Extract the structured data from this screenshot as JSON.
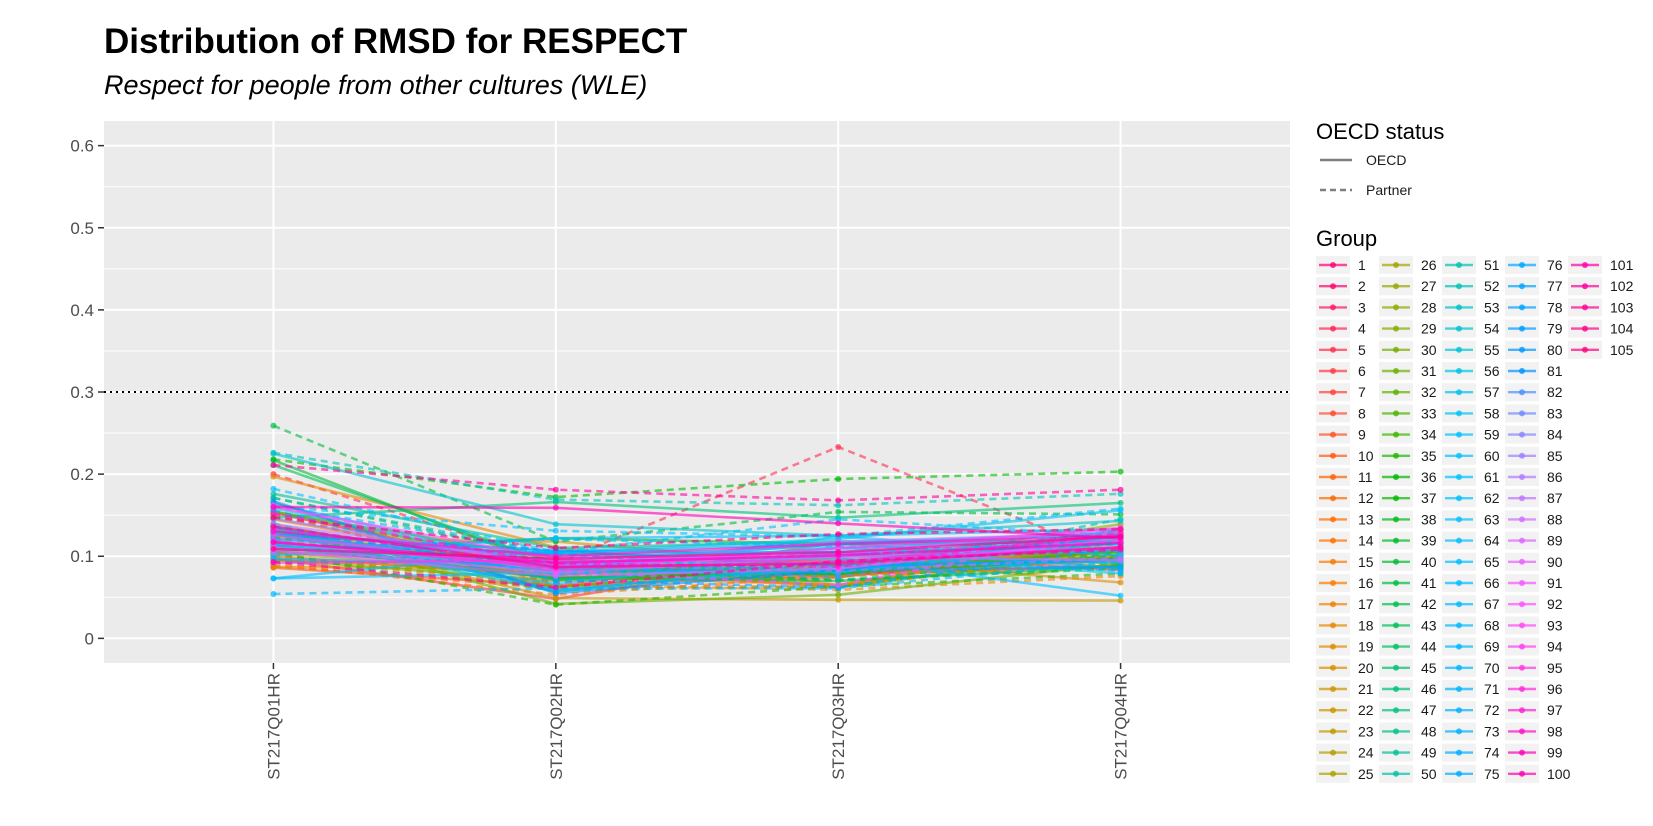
{
  "chart_data": {
    "type": "line",
    "title": "Distribution of RMSD for RESPECT",
    "subtitle": "Respect for people from other cultures (WLE)",
    "x": [
      "ST217Q01HR",
      "ST217Q02HR",
      "ST217Q03HR",
      "ST217Q04HR"
    ],
    "ylim": [
      -0.03,
      0.63
    ],
    "yticks": [
      0,
      0.1,
      0.2,
      0.3,
      0.4,
      0.5,
      0.6
    ],
    "ytick_labels": [
      "0",
      "0.1",
      "0.2",
      "0.3",
      "0.4",
      "0.5",
      "0.6"
    ],
    "reference_line": 0.3,
    "grid": true,
    "legend_position": "right",
    "oecd_legend": {
      "title": "OECD status",
      "entries": [
        {
          "label": "OECD",
          "dash": "solid"
        },
        {
          "label": "Partner",
          "dash": "dashed"
        }
      ]
    },
    "group_legend": {
      "title": "Group",
      "count": 105,
      "labels": [
        "1",
        "2",
        "3",
        "4",
        "5",
        "6",
        "7",
        "8",
        "9",
        "10",
        "11",
        "12",
        "13",
        "14",
        "15",
        "16",
        "17",
        "18",
        "19",
        "20",
        "21",
        "22",
        "23",
        "24",
        "25",
        "26",
        "27",
        "28",
        "29",
        "30",
        "31",
        "32",
        "33",
        "34",
        "35",
        "36",
        "37",
        "38",
        "39",
        "40",
        "41",
        "42",
        "43",
        "44",
        "45",
        "46",
        "47",
        "48",
        "49",
        "50",
        "51",
        "52",
        "53",
        "54",
        "55",
        "56",
        "57",
        "58",
        "59",
        "60",
        "61",
        "62",
        "63",
        "64",
        "65",
        "66",
        "67",
        "68",
        "69",
        "70",
        "71",
        "72",
        "73",
        "74",
        "75",
        "76",
        "77",
        "78",
        "79",
        "80",
        "81",
        "82",
        "83",
        "84",
        "85",
        "86",
        "87",
        "88",
        "89",
        "90",
        "91",
        "92",
        "93",
        "94",
        "95",
        "96",
        "97",
        "98",
        "99",
        "100",
        "101",
        "102",
        "103",
        "104",
        "105"
      ]
    },
    "series": [
      {
        "name": "1",
        "values": [
          0.105,
          0.088,
          0.083,
          0.109
        ],
        "oecd": true
      },
      {
        "name": "2",
        "values": [
          0.153,
          0.08,
          0.078,
          0.088
        ],
        "oecd": true
      },
      {
        "name": "3",
        "values": [
          0.151,
          0.067,
          0.089,
          0.103
        ],
        "oecd": false
      },
      {
        "name": "4",
        "values": [
          0.115,
          0.096,
          0.075,
          0.107
        ],
        "oecd": true
      },
      {
        "name": "5",
        "values": [
          0.2,
          0.092,
          0.233,
          0.097
        ],
        "oecd": false
      },
      {
        "name": "6",
        "values": [
          0.097,
          0.048,
          0.104,
          0.083
        ],
        "oecd": true
      },
      {
        "name": "7",
        "values": [
          0.132,
          0.062,
          0.117,
          0.085
        ],
        "oecd": true
      },
      {
        "name": "8",
        "values": [
          0.134,
          0.072,
          0.074,
          0.132
        ],
        "oecd": true
      },
      {
        "name": "9",
        "values": [
          0.088,
          0.061,
          0.102,
          0.117
        ],
        "oecd": false
      },
      {
        "name": "10",
        "values": [
          0.086,
          0.064,
          0.078,
          0.107
        ],
        "oecd": true
      },
      {
        "name": "11",
        "values": [
          0.102,
          0.063,
          0.063,
          0.101
        ],
        "oecd": false
      },
      {
        "name": "12",
        "values": [
          0.096,
          0.081,
          0.08,
          0.097
        ],
        "oecd": true
      },
      {
        "name": "13",
        "values": [
          0.1,
          0.076,
          0.065,
          0.12
        ],
        "oecd": true
      },
      {
        "name": "14",
        "values": [
          0.091,
          0.053,
          0.076,
          0.09
        ],
        "oecd": false
      },
      {
        "name": "15",
        "values": [
          0.165,
          0.063,
          0.081,
          0.095
        ],
        "oecd": true
      },
      {
        "name": "16",
        "values": [
          0.145,
          0.085,
          0.063,
          0.122
        ],
        "oecd": true
      },
      {
        "name": "17",
        "values": [
          0.13,
          0.065,
          0.059,
          0.076
        ],
        "oecd": false
      },
      {
        "name": "18",
        "values": [
          0.197,
          0.111,
          0.065,
          0.102
        ],
        "oecd": true
      },
      {
        "name": "19",
        "values": [
          0.087,
          0.085,
          0.097,
          0.068
        ],
        "oecd": true
      },
      {
        "name": "20",
        "values": [
          0.148,
          0.094,
          0.075,
          0.1
        ],
        "oecd": false
      },
      {
        "name": "21",
        "values": [
          0.122,
          0.118,
          0.089,
          0.106
        ],
        "oecd": true
      },
      {
        "name": "22",
        "values": [
          0.131,
          0.049,
          0.047,
          0.046
        ],
        "oecd": true
      },
      {
        "name": "23",
        "values": [
          0.12,
          0.085,
          0.065,
          0.117
        ],
        "oecd": false
      },
      {
        "name": "24",
        "values": [
          0.139,
          0.071,
          0.101,
          0.097
        ],
        "oecd": true
      },
      {
        "name": "25",
        "values": [
          0.104,
          0.103,
          0.094,
          0.125
        ],
        "oecd": true
      },
      {
        "name": "26",
        "values": [
          0.1,
          0.059,
          0.063,
          0.104
        ],
        "oecd": false
      },
      {
        "name": "27",
        "values": [
          0.154,
          0.097,
          0.075,
          0.129
        ],
        "oecd": true
      },
      {
        "name": "28",
        "values": [
          0.104,
          0.078,
          0.088,
          0.139
        ],
        "oecd": true
      },
      {
        "name": "29",
        "values": [
          0.094,
          0.078,
          0.07,
          0.09
        ],
        "oecd": false
      },
      {
        "name": "30",
        "values": [
          0.096,
          0.07,
          0.087,
          0.101
        ],
        "oecd": true
      },
      {
        "name": "31",
        "values": [
          0.135,
          0.042,
          0.053,
          0.091
        ],
        "oecd": true
      },
      {
        "name": "32",
        "values": [
          0.132,
          0.062,
          0.093,
          0.115
        ],
        "oecd": false
      },
      {
        "name": "33",
        "values": [
          0.155,
          0.086,
          0.08,
          0.106
        ],
        "oecd": true
      },
      {
        "name": "34",
        "values": [
          0.117,
          0.073,
          0.083,
          0.106
        ],
        "oecd": true
      },
      {
        "name": "35",
        "values": [
          0.105,
          0.041,
          0.063,
          0.079
        ],
        "oecd": false
      },
      {
        "name": "36",
        "values": [
          0.113,
          0.074,
          0.079,
          0.098
        ],
        "oecd": true
      },
      {
        "name": "37",
        "values": [
          0.218,
          0.172,
          0.194,
          0.203
        ],
        "oecd": false
      },
      {
        "name": "38",
        "values": [
          0.123,
          0.085,
          0.071,
          0.085
        ],
        "oecd": false
      },
      {
        "name": "39",
        "values": [
          0.106,
          0.122,
          0.115,
          0.118
        ],
        "oecd": true
      },
      {
        "name": "40",
        "values": [
          0.217,
          0.085,
          0.078,
          0.13
        ],
        "oecd": true
      },
      {
        "name": "41",
        "values": [
          0.259,
          0.118,
          0.154,
          0.151
        ],
        "oecd": false
      },
      {
        "name": "42",
        "values": [
          0.112,
          0.074,
          0.07,
          0.088
        ],
        "oecd": true
      },
      {
        "name": "43",
        "values": [
          0.211,
          0.091,
          0.082,
          0.128
        ],
        "oecd": true
      },
      {
        "name": "44",
        "values": [
          0.171,
          0.099,
          0.062,
          0.105
        ],
        "oecd": false
      },
      {
        "name": "45",
        "values": [
          0.126,
          0.087,
          0.104,
          0.091
        ],
        "oecd": true
      },
      {
        "name": "46",
        "values": [
          0.147,
          0.166,
          0.147,
          0.165
        ],
        "oecd": true
      },
      {
        "name": "47",
        "values": [
          0.114,
          0.088,
          0.071,
          0.101
        ],
        "oecd": false
      },
      {
        "name": "48",
        "values": [
          0.131,
          0.071,
          0.094,
          0.107
        ],
        "oecd": true
      },
      {
        "name": "49",
        "values": [
          0.176,
          0.11,
          0.118,
          0.118
        ],
        "oecd": true
      },
      {
        "name": "50",
        "values": [
          0.171,
          0.103,
          0.079,
          0.145
        ],
        "oecd": false
      },
      {
        "name": "51",
        "values": [
          0.128,
          0.057,
          0.093,
          0.116
        ],
        "oecd": true
      },
      {
        "name": "52",
        "values": [
          0.226,
          0.169,
          0.162,
          0.176
        ],
        "oecd": false
      },
      {
        "name": "53",
        "values": [
          0.128,
          0.078,
          0.101,
          0.093
        ],
        "oecd": false
      },
      {
        "name": "54",
        "values": [
          0.225,
          0.139,
          0.125,
          0.143
        ],
        "oecd": true
      },
      {
        "name": "55",
        "values": [
          0.133,
          0.094,
          0.114,
          0.119
        ],
        "oecd": true
      },
      {
        "name": "56",
        "values": [
          0.14,
          0.058,
          0.087,
          0.132
        ],
        "oecd": false
      },
      {
        "name": "57",
        "values": [
          0.128,
          0.105,
          0.121,
          0.156
        ],
        "oecd": true
      },
      {
        "name": "58",
        "values": [
          0.128,
          0.079,
          0.081,
          0.117
        ],
        "oecd": true
      },
      {
        "name": "59",
        "values": [
          0.109,
          0.121,
          0.112,
          0.106
        ],
        "oecd": false
      },
      {
        "name": "60",
        "values": [
          0.073,
          0.08,
          0.124,
          0.101
        ],
        "oecd": true
      },
      {
        "name": "61",
        "values": [
          0.159,
          0.085,
          0.111,
          0.085
        ],
        "oecd": true
      },
      {
        "name": "62",
        "values": [
          0.182,
          0.105,
          0.145,
          0.125
        ],
        "oecd": false
      },
      {
        "name": "63",
        "values": [
          0.113,
          0.087,
          0.098,
          0.052
        ],
        "oecd": true
      },
      {
        "name": "64",
        "values": [
          0.119,
          0.066,
          0.105,
          0.079
        ],
        "oecd": true
      },
      {
        "name": "65",
        "values": [
          0.161,
          0.131,
          0.124,
          0.158
        ],
        "oecd": false
      },
      {
        "name": "66",
        "values": [
          0.101,
          0.122,
          0.125,
          0.133
        ],
        "oecd": true
      },
      {
        "name": "67",
        "values": [
          0.073,
          0.107,
          0.104,
          0.114
        ],
        "oecd": true
      },
      {
        "name": "68",
        "values": [
          0.161,
          0.104,
          0.08,
          0.124
        ],
        "oecd": false
      },
      {
        "name": "69",
        "values": [
          0.054,
          0.061,
          0.061,
          0.094
        ],
        "oecd": false
      },
      {
        "name": "70",
        "values": [
          0.097,
          0.088,
          0.116,
          0.128
        ],
        "oecd": true
      },
      {
        "name": "71",
        "values": [
          0.137,
          0.077,
          0.103,
          0.082
        ],
        "oecd": false
      },
      {
        "name": "72",
        "values": [
          0.136,
          0.059,
          0.087,
          0.094
        ],
        "oecd": true
      },
      {
        "name": "73",
        "values": [
          0.164,
          0.087,
          0.11,
          0.121
        ],
        "oecd": true
      },
      {
        "name": "74",
        "values": [
          0.093,
          0.092,
          0.103,
          0.11
        ],
        "oecd": false
      },
      {
        "name": "75",
        "values": [
          0.121,
          0.102,
          0.105,
          0.117
        ],
        "oecd": true
      },
      {
        "name": "76",
        "values": [
          0.114,
          0.104,
          0.116,
          0.126
        ],
        "oecd": true
      },
      {
        "name": "77",
        "values": [
          0.156,
          0.071,
          0.062,
          0.111
        ],
        "oecd": false
      },
      {
        "name": "78",
        "values": [
          0.11,
          0.083,
          0.083,
          0.087
        ],
        "oecd": true
      },
      {
        "name": "79",
        "values": [
          0.126,
          0.107,
          0.088,
          0.096
        ],
        "oecd": true
      },
      {
        "name": "80",
        "values": [
          0.132,
          0.085,
          0.089,
          0.132
        ],
        "oecd": false
      },
      {
        "name": "81",
        "values": [
          0.167,
          0.055,
          0.083,
          0.125
        ],
        "oecd": true
      },
      {
        "name": "82",
        "values": [
          0.136,
          0.088,
          0.075,
          0.123
        ],
        "oecd": false
      },
      {
        "name": "83",
        "values": [
          0.12,
          0.1,
          0.098,
          0.108
        ],
        "oecd": true
      },
      {
        "name": "84",
        "values": [
          0.146,
          0.088,
          0.109,
          0.122
        ],
        "oecd": true
      },
      {
        "name": "85",
        "values": [
          0.104,
          0.09,
          0.082,
          0.098
        ],
        "oecd": false
      },
      {
        "name": "86",
        "values": [
          0.116,
          0.087,
          0.118,
          0.128
        ],
        "oecd": true
      },
      {
        "name": "87",
        "values": [
          0.139,
          0.092,
          0.1,
          0.11
        ],
        "oecd": true
      },
      {
        "name": "88",
        "values": [
          0.11,
          0.095,
          0.086,
          0.118
        ],
        "oecd": false
      },
      {
        "name": "89",
        "values": [
          0.111,
          0.08,
          0.1,
          0.095
        ],
        "oecd": true
      },
      {
        "name": "90",
        "values": [
          0.107,
          0.076,
          0.085,
          0.121
        ],
        "oecd": true
      },
      {
        "name": "91",
        "values": [
          0.162,
          0.082,
          0.065,
          0.131
        ],
        "oecd": false
      },
      {
        "name": "92",
        "values": [
          0.16,
          0.097,
          0.102,
          0.135
        ],
        "oecd": true
      },
      {
        "name": "93",
        "values": [
          0.126,
          0.083,
          0.11,
          0.133
        ],
        "oecd": true
      },
      {
        "name": "94",
        "values": [
          0.133,
          0.09,
          0.103,
          0.118
        ],
        "oecd": false
      },
      {
        "name": "95",
        "values": [
          0.092,
          0.095,
          0.094,
          0.111
        ],
        "oecd": true
      },
      {
        "name": "96",
        "values": [
          0.118,
          0.086,
          0.092,
          0.126
        ],
        "oecd": true
      },
      {
        "name": "97",
        "values": [
          0.152,
          0.091,
          0.087,
          0.128
        ],
        "oecd": false
      },
      {
        "name": "98",
        "values": [
          0.13,
          0.1,
          0.115,
          0.124
        ],
        "oecd": true
      },
      {
        "name": "99",
        "values": [
          0.117,
          0.092,
          0.101,
          0.116
        ],
        "oecd": true
      },
      {
        "name": "100",
        "values": [
          0.16,
          0.159,
          0.14,
          0.122
        ],
        "oecd": true
      },
      {
        "name": "101",
        "values": [
          0.093,
          0.062,
          0.094,
          0.108
        ],
        "oecd": false
      },
      {
        "name": "102",
        "values": [
          0.211,
          0.181,
          0.168,
          0.181
        ],
        "oecd": false
      },
      {
        "name": "103",
        "values": [
          0.136,
          0.087,
          0.091,
          0.111
        ],
        "oecd": true
      },
      {
        "name": "104",
        "values": [
          0.109,
          0.097,
          0.105,
          0.124
        ],
        "oecd": true
      },
      {
        "name": "105",
        "values": [
          0.147,
          0.11,
          0.127,
          0.133
        ],
        "oecd": false
      }
    ]
  }
}
